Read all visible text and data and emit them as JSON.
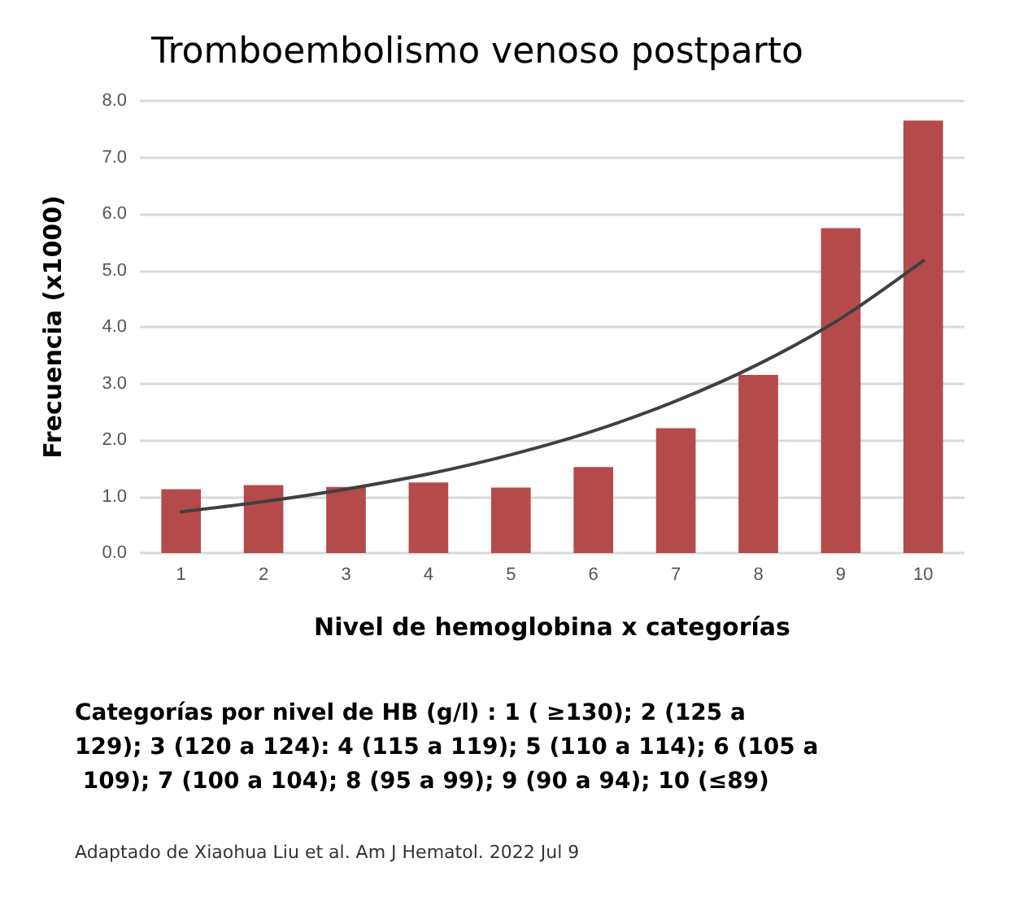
{
  "chart_data": {
    "type": "bar",
    "title": "Tromboembolismo venoso postparto",
    "xlabel": "Nivel de hemoglobina x categorías",
    "ylabel": "Frecuencia (x1000)",
    "categories": [
      "1",
      "2",
      "3",
      "4",
      "5",
      "6",
      "7",
      "8",
      "9",
      "10"
    ],
    "series": [
      {
        "color": "#b54a4a",
        "values": [
          1.13,
          1.2,
          1.17,
          1.25,
          1.16,
          1.52,
          2.21,
          3.15,
          5.75,
          7.65
        ]
      },
      {
        "type": "line",
        "color": "#404040",
        "marker": "none",
        "line_style": "solid",
        "values": [
          0.73,
          0.91,
          1.13,
          1.4,
          1.74,
          2.16,
          2.69,
          3.34,
          4.15,
          5.17
        ]
      }
    ],
    "ylim": [
      0,
      8
    ],
    "yticks": [
      {
        "value": 0,
        "label": "0.0"
      },
      {
        "value": 1,
        "label": "1.0"
      },
      {
        "value": 2,
        "label": "2.0"
      },
      {
        "value": 3,
        "label": "3.0"
      },
      {
        "value": 4,
        "label": "4.0"
      },
      {
        "value": 5,
        "label": "5.0"
      },
      {
        "value": 6,
        "label": "6.0"
      },
      {
        "value": 7,
        "label": "7.0"
      },
      {
        "value": 8,
        "label": "8.0"
      }
    ],
    "grid": "y",
    "annotations": [
      "Categorías por nivel de HB (g/l) : 1 ( ≥130); 2 (125 a 129); 3 (120 a 124): 4 (115 a 119); 5 (110 a 114); 6 (105 a 109); 7 (100 a 104); 8 (95 a 99); 9 (90 a 94); 10 (≤89)",
      "Adaptado de Xiaohua Liu et al. Am J Hematol. 2022 Jul 9"
    ]
  }
}
